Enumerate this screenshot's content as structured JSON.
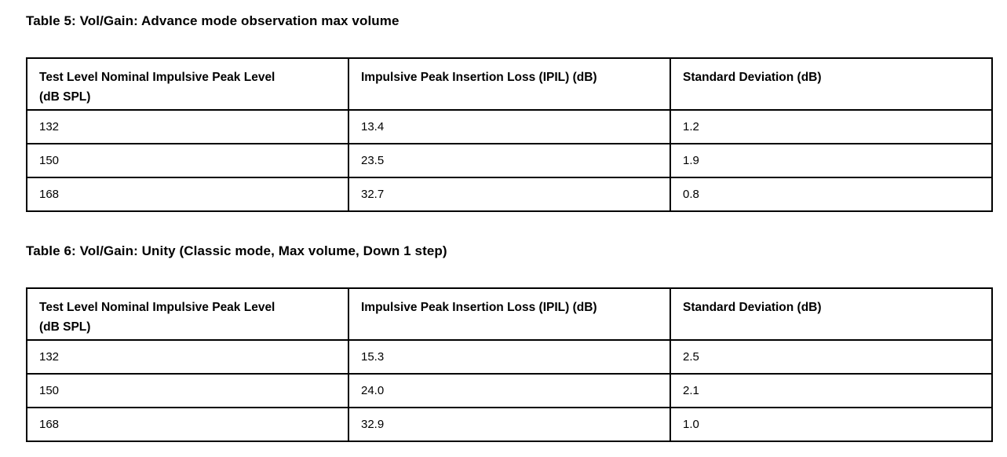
{
  "page": {
    "background": "#ffffff",
    "text_color": "#000000",
    "border_color": "#000000"
  },
  "tables": [
    {
      "title": "Table 5: Vol/Gain: Advance mode observation max volume",
      "columns": [
        "Test Level Nominal Impulsive Peak Level\n(dB SPL)",
        "Impulsive Peak Insertion Loss (IPIL) (dB)",
        "Standard Deviation (dB)"
      ],
      "rows": [
        [
          "132",
          "13.4",
          "1.2"
        ],
        [
          "150",
          "23.5",
          "1.9"
        ],
        [
          "168",
          "32.7",
          "0.8"
        ]
      ]
    },
    {
      "title": "Table 6: Vol/Gain: Unity (Classic mode, Max volume, Down 1 step)",
      "columns": [
        "Test Level Nominal Impulsive Peak Level\n(dB SPL)",
        "Impulsive Peak Insertion Loss (IPIL) (dB)",
        "Standard Deviation (dB)"
      ],
      "rows": [
        [
          "132",
          "15.3",
          "2.5"
        ],
        [
          "150",
          "24.0",
          "2.1"
        ],
        [
          "168",
          "32.9",
          "1.0"
        ]
      ]
    }
  ]
}
